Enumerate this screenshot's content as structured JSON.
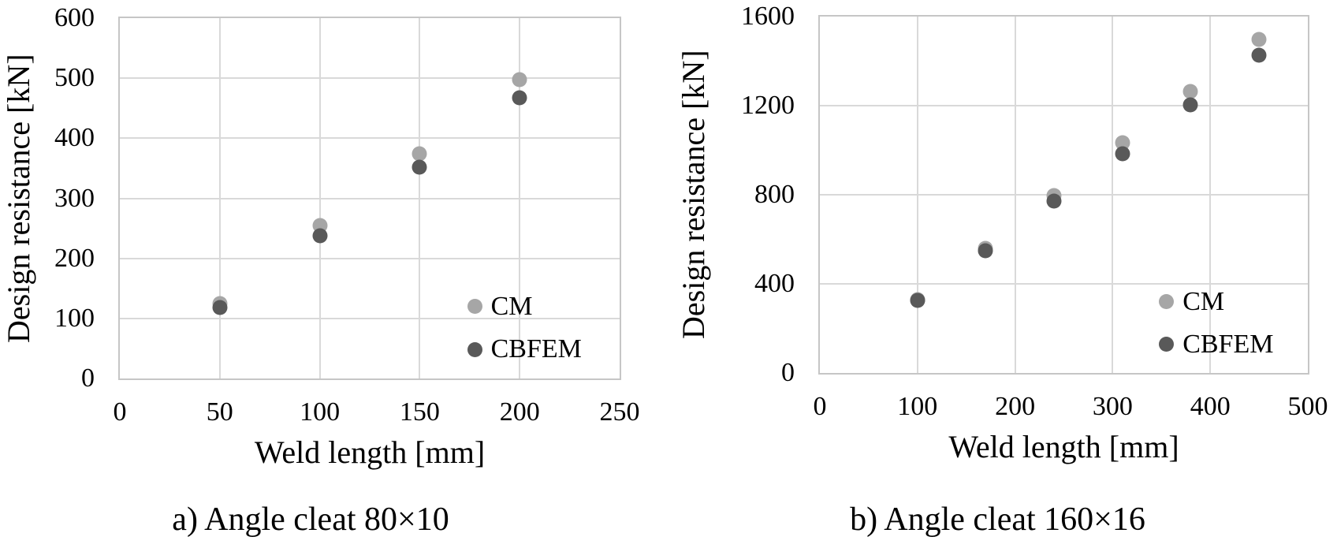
{
  "figure_style": {
    "background": "#ffffff",
    "grid_color": "#d9d9d9",
    "axis_color": "#c6c6c6",
    "text_color": "#000000"
  },
  "chart_data": [
    {
      "type": "scatter",
      "caption": "a) Angle cleat 80×10",
      "xlabel": "Weld length [mm]",
      "ylabel": "Design resistance [kN]",
      "xlim": [
        0,
        250
      ],
      "ylim": [
        0,
        600
      ],
      "xticks": [
        0,
        50,
        100,
        150,
        200,
        250
      ],
      "yticks": [
        0,
        100,
        200,
        300,
        400,
        500,
        600
      ],
      "grid": true,
      "legend_position": "inside lower right",
      "x": [
        50,
        100,
        150,
        200
      ],
      "series": [
        {
          "name": "CM",
          "color": "#a6a6a6",
          "values": [
            125,
            255,
            374,
            498
          ]
        },
        {
          "name": "CBFEM",
          "color": "#595959",
          "values": [
            118,
            237,
            352,
            468
          ]
        }
      ]
    },
    {
      "type": "scatter",
      "caption": "b) Angle cleat 160×16",
      "xlabel": "Weld length [mm]",
      "ylabel": "Design resistance [kN]",
      "xlim": [
        0,
        500
      ],
      "ylim": [
        0,
        1600
      ],
      "xticks": [
        0,
        100,
        200,
        300,
        400,
        500
      ],
      "yticks": [
        0,
        400,
        800,
        1200,
        1600
      ],
      "grid": true,
      "legend_position": "inside lower right",
      "x": [
        100,
        170,
        240,
        310,
        380,
        450
      ],
      "series": [
        {
          "name": "CM",
          "color": "#a6a6a6",
          "values": [
            330,
            561,
            795,
            1035,
            1263,
            1497
          ]
        },
        {
          "name": "CBFEM",
          "color": "#595959",
          "values": [
            324,
            549,
            772,
            983,
            1205,
            1428
          ]
        }
      ]
    }
  ]
}
